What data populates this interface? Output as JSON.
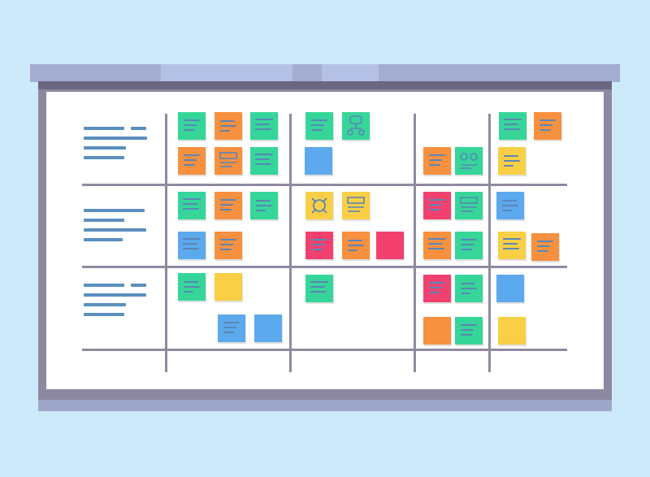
{
  "colors": {
    "background": "#cdeafb",
    "board": "#ffffff",
    "frame": "#8d88a0",
    "rail": "#a3acd1",
    "grid_line": "#8e8aa0",
    "row_label_line": "#5a8fbd",
    "note_green": "#36d69a",
    "note_orange": "#f7903f",
    "note_blue": "#5ca9ee",
    "note_yellow": "#f9cf45",
    "note_pink": "#f2416f"
  },
  "board": {
    "columns": 5,
    "rows": 3,
    "row_labels_shown_as": "placeholder-lines",
    "notes": [
      {
        "row": 1,
        "col": 1,
        "color": "green",
        "icon": "text-lines"
      },
      {
        "row": 1,
        "col": 1,
        "color": "orange",
        "icon": "text-lines"
      },
      {
        "row": 1,
        "col": 1,
        "color": "green",
        "icon": "text-lines"
      },
      {
        "row": 1,
        "col": 1,
        "color": "orange",
        "icon": "text-lines"
      },
      {
        "row": 1,
        "col": 1,
        "color": "orange",
        "icon": "wireframe"
      },
      {
        "row": 1,
        "col": 1,
        "color": "green",
        "icon": "text-lines"
      },
      {
        "row": 1,
        "col": 2,
        "color": "green",
        "icon": "text-lines"
      },
      {
        "row": 1,
        "col": 2,
        "color": "green",
        "icon": "flowchart"
      },
      {
        "row": 1,
        "col": 2,
        "color": "blue",
        "icon": "blank"
      },
      {
        "row": 1,
        "col": 3,
        "color": "orange",
        "icon": "text-lines"
      },
      {
        "row": 1,
        "col": 3,
        "color": "green",
        "icon": "circles"
      },
      {
        "row": 1,
        "col": 4,
        "color": "green",
        "icon": "text-lines"
      },
      {
        "row": 1,
        "col": 4,
        "color": "orange",
        "icon": "text-lines"
      },
      {
        "row": 1,
        "col": 4,
        "color": "yellow",
        "icon": "text-lines"
      },
      {
        "row": 2,
        "col": 1,
        "color": "green",
        "icon": "text-lines"
      },
      {
        "row": 2,
        "col": 1,
        "color": "orange",
        "icon": "text-lines"
      },
      {
        "row": 2,
        "col": 1,
        "color": "green",
        "icon": "text-lines"
      },
      {
        "row": 2,
        "col": 1,
        "color": "blue",
        "icon": "text-lines"
      },
      {
        "row": 2,
        "col": 1,
        "color": "orange",
        "icon": "text-lines"
      },
      {
        "row": 2,
        "col": 2,
        "color": "yellow",
        "icon": "target"
      },
      {
        "row": 2,
        "col": 2,
        "color": "yellow",
        "icon": "wireframe"
      },
      {
        "row": 2,
        "col": 2,
        "color": "pink",
        "icon": "text-lines"
      },
      {
        "row": 2,
        "col": 2,
        "color": "orange",
        "icon": "text-lines"
      },
      {
        "row": 2,
        "col": 2,
        "color": "pink",
        "icon": "blank"
      },
      {
        "row": 2,
        "col": 3,
        "color": "pink",
        "icon": "text-lines"
      },
      {
        "row": 2,
        "col": 3,
        "color": "green",
        "icon": "wireframe"
      },
      {
        "row": 2,
        "col": 3,
        "color": "orange",
        "icon": "text-lines"
      },
      {
        "row": 2,
        "col": 3,
        "color": "green",
        "icon": "text-lines"
      },
      {
        "row": 2,
        "col": 4,
        "color": "blue",
        "icon": "text-lines"
      },
      {
        "row": 2,
        "col": 4,
        "color": "yellow",
        "icon": "text-lines"
      },
      {
        "row": 2,
        "col": 4,
        "color": "orange",
        "icon": "text-lines"
      },
      {
        "row": 3,
        "col": 1,
        "color": "green",
        "icon": "text-lines"
      },
      {
        "row": 3,
        "col": 1,
        "color": "yellow",
        "icon": "blank"
      },
      {
        "row": 3,
        "col": 1,
        "color": "blue",
        "icon": "text-lines"
      },
      {
        "row": 3,
        "col": 1,
        "color": "blue",
        "icon": "blank"
      },
      {
        "row": 3,
        "col": 2,
        "color": "green",
        "icon": "text-lines"
      },
      {
        "row": 3,
        "col": 3,
        "color": "pink",
        "icon": "text-lines"
      },
      {
        "row": 3,
        "col": 3,
        "color": "green",
        "icon": "text-lines"
      },
      {
        "row": 3,
        "col": 3,
        "color": "orange",
        "icon": "blank"
      },
      {
        "row": 3,
        "col": 3,
        "color": "green",
        "icon": "text-lines"
      },
      {
        "row": 3,
        "col": 4,
        "color": "blue",
        "icon": "blank"
      },
      {
        "row": 3,
        "col": 4,
        "color": "yellow",
        "icon": "blank"
      }
    ]
  }
}
